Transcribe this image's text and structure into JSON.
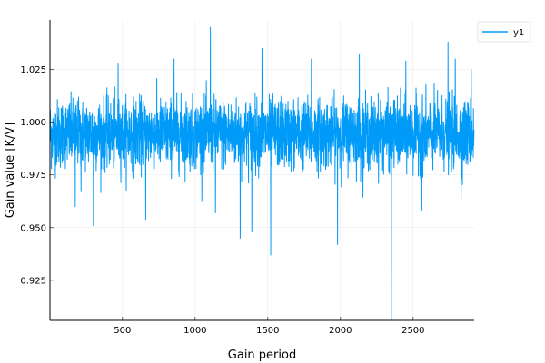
{
  "chart_data": {
    "type": "line",
    "title": "",
    "xlabel": "Gain period",
    "ylabel": "Gain value [K/V]",
    "xlim": [
      1,
      2920
    ],
    "ylim": [
      0.906,
      1.0485
    ],
    "x_ticks": [
      500,
      1000,
      1500,
      2000,
      2500
    ],
    "y_ticks": [
      0.925,
      0.95,
      0.975,
      1.0,
      1.025
    ],
    "y_tick_labels": [
      "0.925",
      "0.950",
      "0.975",
      "1.000",
      "1.025"
    ],
    "grid": true,
    "legend": "top-right",
    "series": [
      {
        "name": "y1",
        "color": "#009af9",
        "n_points": 2920,
        "baseline": 0.9945,
        "noise_sd": 0.008,
        "x_start": 1,
        "x_step": 1,
        "spikes": [
          {
            "x": 300,
            "y": 1.038
          },
          {
            "x": 470,
            "y": 1.028
          },
          {
            "x": 855,
            "y": 1.03
          },
          {
            "x": 1105,
            "y": 1.045
          },
          {
            "x": 1140,
            "y": 1.048
          },
          {
            "x": 1460,
            "y": 1.035
          },
          {
            "x": 1800,
            "y": 1.03
          },
          {
            "x": 2130,
            "y": 1.032
          },
          {
            "x": 2450,
            "y": 1.029
          },
          {
            "x": 2740,
            "y": 1.038
          },
          {
            "x": 2790,
            "y": 1.03
          },
          {
            "x": 2900,
            "y": 1.025
          },
          {
            "x": 175,
            "y": 0.96
          },
          {
            "x": 215,
            "y": 0.967
          },
          {
            "x": 300,
            "y": 0.951
          },
          {
            "x": 660,
            "y": 0.954
          },
          {
            "x": 1140,
            "y": 0.957
          },
          {
            "x": 1310,
            "y": 0.945
          },
          {
            "x": 1390,
            "y": 0.948
          },
          {
            "x": 1520,
            "y": 0.937
          },
          {
            "x": 1980,
            "y": 0.942
          },
          {
            "x": 2350,
            "y": 0.906
          },
          {
            "x": 2560,
            "y": 0.958
          },
          {
            "x": 2830,
            "y": 0.962
          }
        ]
      }
    ]
  }
}
